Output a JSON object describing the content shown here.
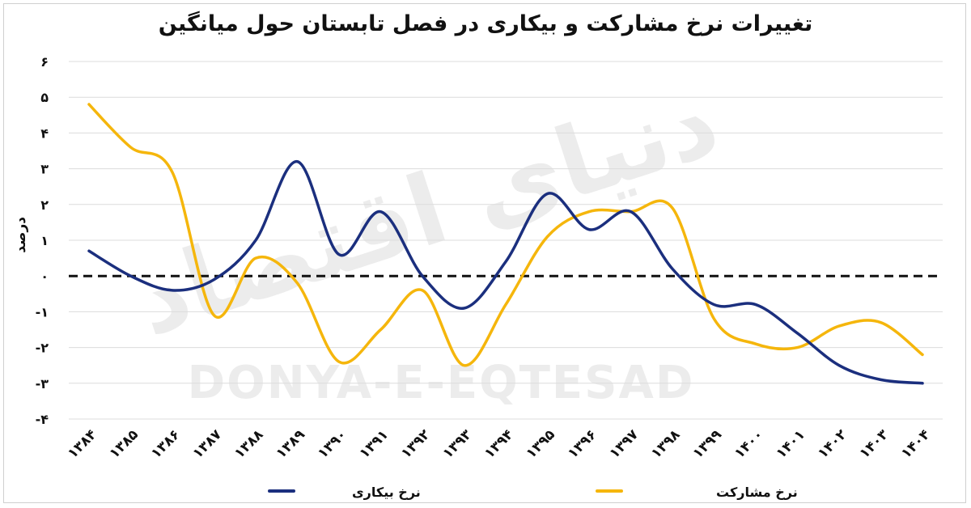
{
  "chart_data": {
    "type": "line",
    "title": "تغییرات نرخ مشارکت و بیکاری در فصل تابستان حول میانگین",
    "ylabel": "درصد",
    "xlabel": "",
    "ylim": [
      -4,
      6
    ],
    "yticks": [
      "-۴",
      "-۳",
      "-۲",
      "-۱",
      "۰",
      "۱",
      "۲",
      "۳",
      "۴",
      "۵",
      "۶"
    ],
    "categories": [
      "۱۳۸۴",
      "۱۳۸۵",
      "۱۳۸۶",
      "۱۳۸۷",
      "۱۳۸۸",
      "۱۳۸۹",
      "۱۳۹۰",
      "۱۳۹۱",
      "۱۳۹۲",
      "۱۳۹۳",
      "۱۳۹۴",
      "۱۳۹۵",
      "۱۳۹۶",
      "۱۳۹۷",
      "۱۳۹۸",
      "۱۳۹۹",
      "۱۴۰۰",
      "۱۴۰۱",
      "۱۴۰۲",
      "۱۴۰۳",
      "۱۴۰۴"
    ],
    "series": [
      {
        "name": "نرخ بیکاری",
        "color": "#1b2f7e",
        "values": [
          0.7,
          0.0,
          -0.4,
          -0.1,
          1.0,
          3.2,
          0.6,
          1.8,
          0.0,
          -0.9,
          0.4,
          2.3,
          1.3,
          1.8,
          0.2,
          -0.8,
          -0.8,
          -1.6,
          -2.5,
          -2.9,
          -3.0
        ]
      },
      {
        "name": "نرخ مشارکت",
        "color": "#f5b60c",
        "values": [
          4.8,
          3.6,
          2.9,
          -1.1,
          0.5,
          -0.2,
          -2.4,
          -1.5,
          -0.4,
          -2.5,
          -0.8,
          1.1,
          1.8,
          1.8,
          1.9,
          -1.2,
          -1.9,
          -2.0,
          -1.4,
          -1.3,
          -2.2
        ]
      }
    ],
    "zero_line": "dashed",
    "grid": true,
    "legend_position": "bottom"
  },
  "watermark": {
    "latin": "DONYA-E-EQTESAD",
    "persian": "دنیای اقتصاد"
  }
}
